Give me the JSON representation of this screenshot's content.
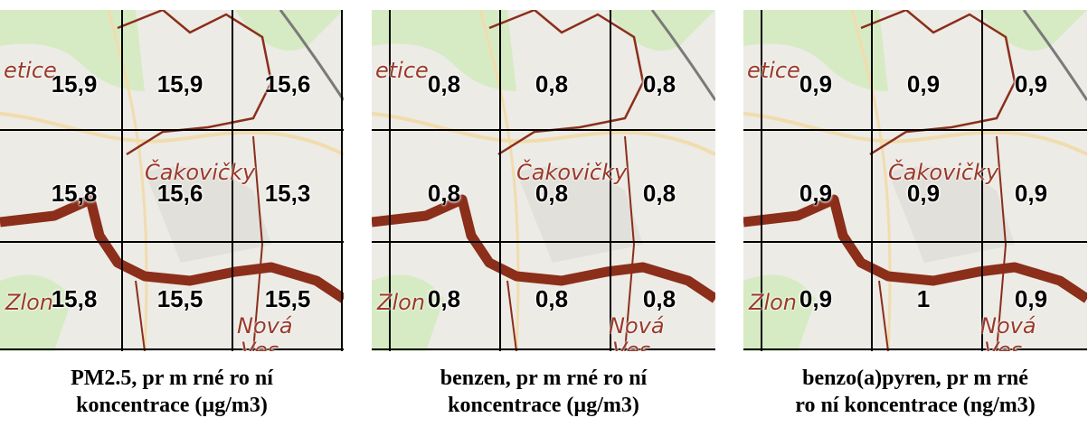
{
  "panels": [
    {
      "caption_line1": "PM2.5, pr m rné ro ní",
      "caption_line2": "koncentrace (µg/m3)",
      "values": [
        "15,9",
        "15,9",
        "15,6",
        "15,8",
        "15,6",
        "15,3",
        "15,8",
        "15,5",
        "15,5"
      ]
    },
    {
      "caption_line1": "benzen, pr m rné ro ní",
      "caption_line2": "koncentrace (µg/m3)",
      "values": [
        "0,8",
        "0,8",
        "0,8",
        "0,8",
        "0,8",
        "0,8",
        "0,8",
        "0,8",
        "0,8"
      ]
    },
    {
      "caption_line1": "benzo(a)pyren, pr m rné",
      "caption_line2": "ro ní koncentrace (ng/m3)",
      "values": [
        "0,9",
        "0,9",
        "0,9",
        "0,9",
        "0,9",
        "0,9",
        "0,9",
        "1",
        "0,9"
      ]
    }
  ],
  "places": {
    "etice": "etice",
    "cakovicky": "Čakovičky",
    "zlonin": "Zlon",
    "nova": "Nová",
    "ves": "Ves"
  },
  "colors": {
    "map_background": "#ecebe6",
    "grid": "#000000",
    "boundary": "#8b2e1a",
    "place_label": "#9a3a2a",
    "green_area": "#cfe8b5",
    "road": "#f0dca8"
  }
}
